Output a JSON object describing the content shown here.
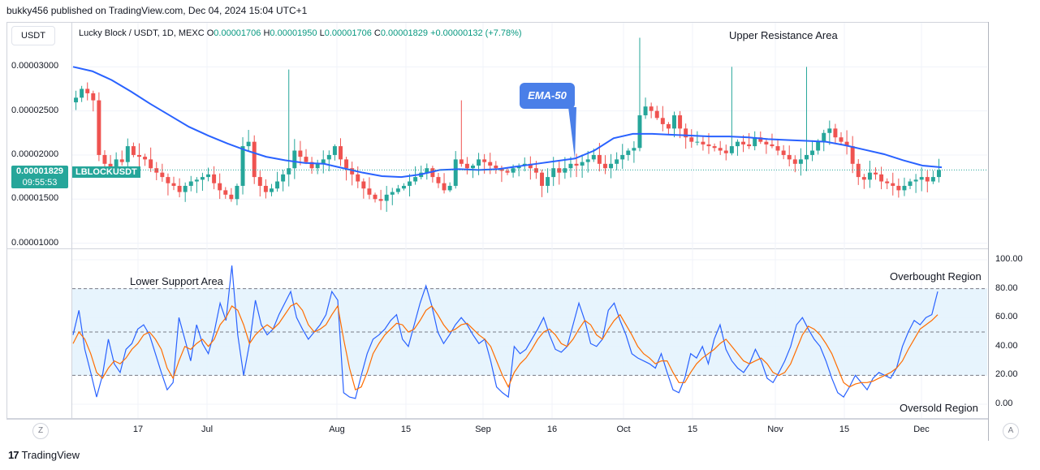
{
  "header": {
    "published": "bukky456 published on TradingView.com, Dec 04, 2024 15:04 UTC+1"
  },
  "toolbar": {
    "unit": "USDT"
  },
  "legend": {
    "title": "Lucky Block / USDT, 1D, MEXC",
    "o_label": "O",
    "o": "0.00001706",
    "h_label": "H",
    "h": "0.00001950",
    "l_label": "L",
    "l": "0.00001706",
    "c_label": "C",
    "c": "0.00001829",
    "change": "+0.00000132 (+7.78%)"
  },
  "last_price": {
    "value": "0.00001829",
    "countdown": "09:55:53",
    "symbol": "LBLOCKUSDT"
  },
  "annotations": {
    "upper": "Upper Resistance Area",
    "lower": "Lower Support Area",
    "overbought": "Overbought Region",
    "oversold": "Oversold Region",
    "ema": "EMA-50"
  },
  "colors": {
    "up": "#26a69a",
    "down": "#ef5350",
    "ema": "#2962ff",
    "stoch_k": "#2962ff",
    "stoch_d": "#ff6d00",
    "band": "#e3f2fd"
  },
  "buttons": {
    "left_circle": "Z",
    "right_circle": "A"
  },
  "brand": {
    "name": "TradingView"
  },
  "chart_data": [
    {
      "type": "candlestick",
      "symbol": "LBLOCKUSDT",
      "timeframe": "1D",
      "ylim": [
        9.5e-06,
        3.5e-05
      ],
      "yticks": [
        "0.00001000",
        "0.00001500",
        "0.00002000",
        "0.00002500",
        "0.00003000"
      ],
      "xticks": [
        "17",
        "Jul",
        "Aug",
        "15",
        "Sep",
        "16",
        "Oct",
        "15",
        "Nov",
        "15",
        "Dec"
      ],
      "series": [
        {
          "name": "EMA-50",
          "type": "line"
        }
      ],
      "closes": [
        2.65e-05,
        2.75e-05,
        2.7e-05,
        2.62e-05,
        2e-05,
        1.9e-05,
        1.85e-05,
        1.95e-05,
        1.92e-05,
        2.1e-05,
        2e-05,
        1.98e-05,
        1.95e-05,
        1.85e-05,
        1.8e-05,
        1.75e-05,
        1.68e-05,
        1.65e-05,
        1.58e-05,
        1.65e-05,
        1.7e-05,
        1.72e-05,
        1.75e-05,
        1.78e-05,
        1.68e-05,
        1.6e-05,
        1.55e-05,
        1.5e-05,
        1.65e-05,
        2.1e-05,
        2.15e-05,
        1.75e-05,
        1.65e-05,
        1.58e-05,
        1.62e-05,
        1.7e-05,
        1.78e-05,
        1.85e-05,
        2.05e-05,
        1.98e-05,
        1.92e-05,
        1.85e-05,
        1.9e-05,
        1.95e-05,
        2e-05,
        2.1e-05,
        1.95e-05,
        1.85e-05,
        1.78e-05,
        1.7e-05,
        1.62e-05,
        1.55e-05,
        1.5e-05,
        1.48e-05,
        1.55e-05,
        1.58e-05,
        1.62e-05,
        1.65e-05,
        1.7e-05,
        1.75e-05,
        1.8e-05,
        1.85e-05,
        1.75e-05,
        1.68e-05,
        1.6e-05,
        1.65e-05,
        1.95e-05,
        1.9e-05,
        1.85e-05,
        1.88e-05,
        1.95e-05,
        1.92e-05,
        1.88e-05,
        1.85e-05,
        1.82e-05,
        1.8e-05,
        1.85e-05,
        1.88e-05,
        1.9e-05,
        1.85e-05,
        1.8e-05,
        1.65e-05,
        1.75e-05,
        1.85e-05,
        1.8e-05,
        1.85e-05,
        1.9e-05,
        1.88e-05,
        1.92e-05,
        1.95e-05,
        2e-05,
        1.9e-05,
        1.85e-05,
        1.9e-05,
        1.95e-05,
        2e-05,
        2.05e-05,
        2.08e-05,
        2.45e-05,
        2.55e-05,
        2.5e-05,
        2.42e-05,
        2.35e-05,
        2.3e-05,
        2.45e-05,
        2.3e-05,
        2.2e-05,
        2.15e-05,
        2.15e-05,
        2.12e-05,
        2.1e-05,
        2.08e-05,
        2.05e-05,
        2.02e-05,
        2.1e-05,
        2.15e-05,
        2.12e-05,
        2.1e-05,
        2.2e-05,
        2.15e-05,
        2.12e-05,
        2.1e-05,
        2.05e-05,
        2e-05,
        1.95e-05,
        1.9e-05,
        1.95e-05,
        2e-05,
        2.05e-05,
        2.15e-05,
        2.25e-05,
        2.3e-05,
        2.2e-05,
        2.15e-05,
        2.1e-05,
        1.9e-05,
        1.75e-05,
        1.72e-05,
        1.8e-05,
        1.78e-05,
        1.7e-05,
        1.68e-05,
        1.65e-05,
        1.6e-05,
        1.65e-05,
        1.7e-05,
        1.72e-05,
        1.75e-05,
        1.7e-05,
        1.75e-05,
        1.83e-05
      ],
      "ema50": [
        3e-05,
        2.95e-05,
        2.85e-05,
        2.72e-05,
        2.58e-05,
        2.45e-05,
        2.32e-05,
        2.22e-05,
        2.13e-05,
        2.05e-05,
        1.98e-05,
        1.94e-05,
        1.91e-05,
        1.9e-05,
        1.85e-05,
        1.8e-05,
        1.76e-05,
        1.75e-05,
        1.78e-05,
        1.83e-05,
        1.84e-05,
        1.83e-05,
        1.84e-05,
        1.87e-05,
        1.9e-05,
        1.93e-05,
        1.96e-05,
        2.05e-05,
        2.19e-05,
        2.24e-05,
        2.24e-05,
        2.23e-05,
        2.22e-05,
        2.21e-05,
        2.21e-05,
        2.2e-05,
        2.18e-05,
        2.17e-05,
        2.16e-05,
        2.15e-05,
        2.11e-05,
        2.06e-05,
        2.01e-05,
        1.94e-05,
        1.88e-05,
        1.86e-05
      ],
      "stoch_k": [
        48,
        65,
        38,
        22,
        5,
        20,
        45,
        28,
        22,
        38,
        42,
        52,
        55,
        48,
        35,
        22,
        10,
        15,
        60,
        45,
        30,
        55,
        42,
        35,
        50,
        70,
        58,
        96,
        48,
        20,
        42,
        72,
        55,
        48,
        52,
        62,
        70,
        78,
        60,
        52,
        45,
        50,
        55,
        62,
        78,
        72,
        8,
        5,
        4,
        20,
        35,
        45,
        48,
        52,
        58,
        62,
        45,
        40,
        55,
        70,
        82,
        68,
        50,
        42,
        48,
        55,
        60,
        55,
        48,
        42,
        45,
        30,
        12,
        8,
        5,
        40,
        35,
        38,
        45,
        52,
        60,
        48,
        38,
        36,
        40,
        55,
        70,
        58,
        42,
        40,
        45,
        65,
        70,
        58,
        48,
        35,
        32,
        30,
        28,
        25,
        35,
        22,
        10,
        8,
        18,
        35,
        32,
        40,
        28,
        45,
        55,
        38,
        30,
        25,
        22,
        28,
        38,
        30,
        18,
        15,
        22,
        30,
        40,
        55,
        60,
        52,
        45,
        40,
        30,
        18,
        8,
        5,
        12,
        20,
        15,
        10,
        18,
        22,
        20,
        18,
        25,
        40,
        50,
        58,
        55,
        60,
        62,
        78
      ],
      "stoch_d": [
        42,
        50,
        45,
        35,
        22,
        18,
        25,
        30,
        28,
        32,
        38,
        42,
        48,
        50,
        45,
        38,
        25,
        18,
        30,
        40,
        38,
        42,
        45,
        40,
        45,
        55,
        60,
        68,
        65,
        55,
        42,
        48,
        52,
        55,
        52,
        56,
        62,
        68,
        70,
        65,
        55,
        50,
        52,
        55,
        62,
        68,
        45,
        25,
        10,
        12,
        22,
        35,
        42,
        48,
        52,
        56,
        55,
        50,
        52,
        58,
        65,
        68,
        62,
        55,
        50,
        52,
        55,
        56,
        52,
        48,
        45,
        40,
        30,
        20,
        12,
        22,
        28,
        32,
        38,
        45,
        50,
        52,
        48,
        42,
        40,
        45,
        52,
        58,
        55,
        48,
        45,
        52,
        58,
        62,
        55,
        48,
        40,
        35,
        32,
        28,
        30,
        30,
        22,
        15,
        15,
        22,
        28,
        32,
        35,
        38,
        42,
        45,
        40,
        35,
        30,
        28,
        30,
        32,
        28,
        22,
        20,
        22,
        28,
        38,
        48,
        54,
        52,
        48,
        42,
        35,
        25,
        15,
        12,
        14,
        15,
        15,
        16,
        18,
        20,
        22,
        25,
        30,
        38,
        45,
        52,
        55,
        58,
        62
      ],
      "stoch_levels": [
        20,
        80
      ],
      "stoch_yticks": [
        "100.00",
        "80.00",
        "60.00",
        "40.00",
        "20.00",
        "0.00"
      ]
    }
  ]
}
